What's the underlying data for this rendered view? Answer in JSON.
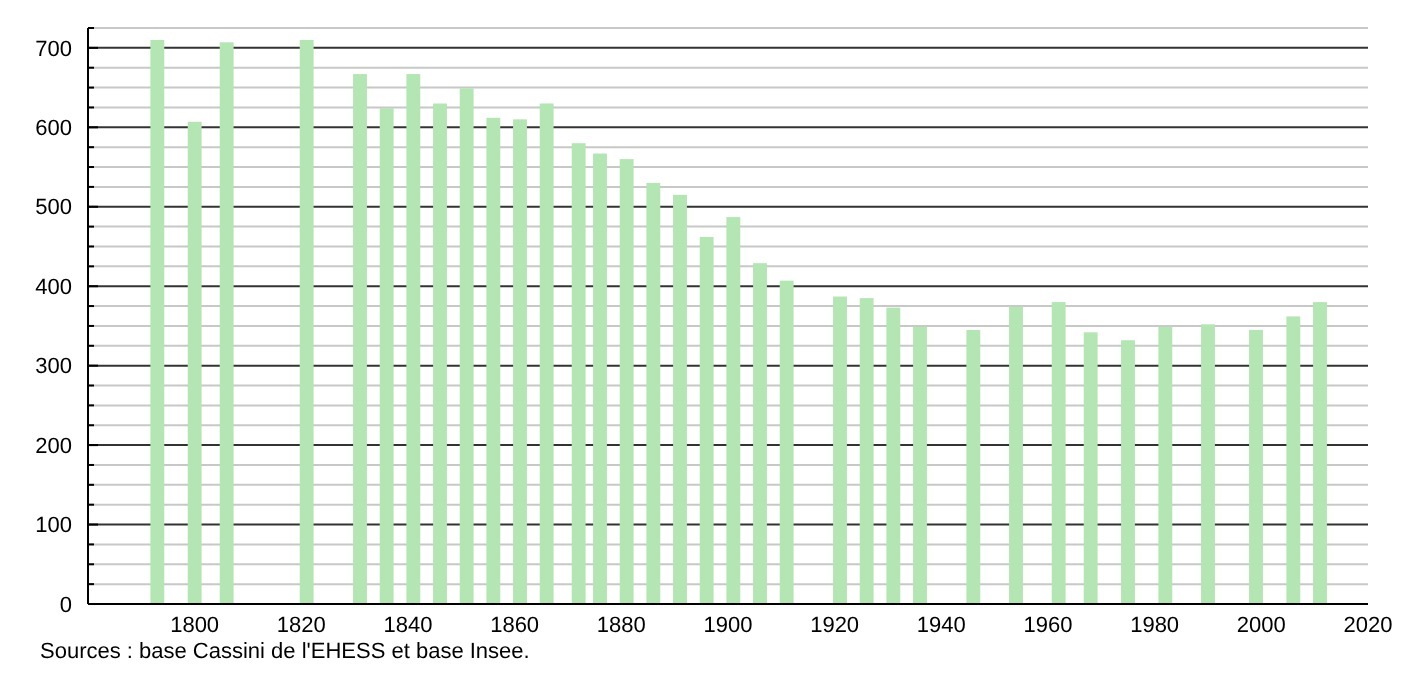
{
  "chart_data": {
    "type": "bar",
    "x": [
      1793,
      1800,
      1806,
      1821,
      1831,
      1836,
      1841,
      1846,
      1851,
      1856,
      1861,
      1866,
      1872,
      1876,
      1881,
      1886,
      1891,
      1896,
      1901,
      1906,
      1911,
      1921,
      1926,
      1931,
      1936,
      1946,
      1954,
      1962,
      1968,
      1975,
      1982,
      1990,
      1999,
      2006,
      2011
    ],
    "values": [
      710,
      607,
      707,
      710,
      667,
      624,
      667,
      630,
      649,
      612,
      610,
      630,
      580,
      567,
      560,
      530,
      515,
      462,
      487,
      429,
      407,
      387,
      385,
      373,
      349,
      345,
      374,
      380,
      342,
      332,
      349,
      352,
      345,
      362,
      380
    ],
    "color": "#b3e6b3",
    "xlim": [
      1780,
      2020
    ],
    "xticks": [
      1800,
      1820,
      1840,
      1860,
      1880,
      1900,
      1920,
      1940,
      1960,
      1980,
      2000,
      2020
    ],
    "ylim": [
      0,
      725
    ],
    "yticks": [
      0,
      {
        "value": 25,
        "label": null
      },
      {
        "value": 50,
        "label": null
      },
      {
        "value": 75,
        "label": null
      },
      100,
      {
        "value": 125,
        "label": null
      },
      {
        "value": 150,
        "label": null
      },
      {
        "value": 175,
        "label": null
      },
      200,
      {
        "value": 225,
        "label": null
      },
      {
        "value": 250,
        "label": null
      },
      {
        "value": 275,
        "label": null
      },
      300,
      {
        "value": 325,
        "label": null
      },
      {
        "value": 350,
        "label": null
      },
      {
        "value": 375,
        "label": null
      },
      400,
      {
        "value": 425,
        "label": null
      },
      {
        "value": 450,
        "label": null
      },
      {
        "value": 475,
        "label": null
      },
      500,
      {
        "value": 525,
        "label": null
      },
      {
        "value": 550,
        "label": null
      },
      {
        "value": 575,
        "label": null
      },
      600,
      {
        "value": 625,
        "label": null
      },
      {
        "value": 650,
        "label": null
      },
      {
        "value": 675,
        "label": null
      },
      700,
      {
        "value": 725,
        "label": null
      }
    ],
    "grid": "y",
    "annotations": [
      "Sources : base Cassini de l'EHESS et base Insee."
    ]
  }
}
